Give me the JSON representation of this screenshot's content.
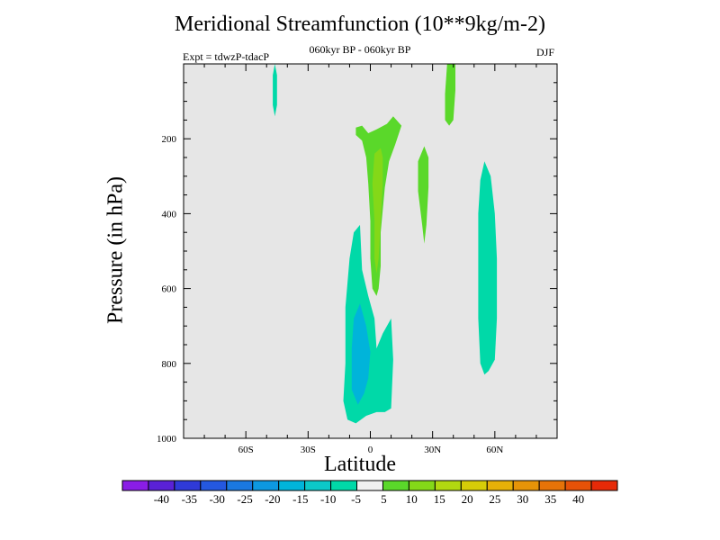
{
  "chart_data": {
    "type": "heatmap",
    "title": "Meridional Streamfunction (10**9kg/m-2)",
    "subtitle": "060kyr BP - 060kyr BP",
    "left_label": "Expt = tdwzP-tdacP",
    "right_label": "DJF",
    "xlabel": "Latitude",
    "ylabel": "Pressure (in hPa)",
    "xlim": [
      -90,
      90
    ],
    "ylim": [
      1000,
      0
    ],
    "x_ticks": [
      {
        "value": -60,
        "label": "60S"
      },
      {
        "value": -30,
        "label": "30S"
      },
      {
        "value": 0,
        "label": "0"
      },
      {
        "value": 30,
        "label": "30N"
      },
      {
        "value": 60,
        "label": "60N"
      }
    ],
    "y_ticks": [
      {
        "value": 200,
        "label": "200"
      },
      {
        "value": 400,
        "label": "400"
      },
      {
        "value": 600,
        "label": "600"
      },
      {
        "value": 800,
        "label": "800"
      },
      {
        "value": 1000,
        "label": "1000"
      }
    ],
    "background_color": "#e6e6e6",
    "colorbar": {
      "colors": [
        "#8a1de6",
        "#5a21d6",
        "#2f3ad8",
        "#2458e0",
        "#1a78e0",
        "#0d98e0",
        "#00b4da",
        "#0cc8c8",
        "#00d9a8",
        "#f0f0f0",
        "#5ad82a",
        "#84d818",
        "#b2d810",
        "#d6cc08",
        "#e6b008",
        "#e69408",
        "#e67308",
        "#e65208",
        "#e62a08"
      ],
      "labels": [
        "-40",
        "-35",
        "-30",
        "-25",
        "-20",
        "-15",
        "-10",
        "-5",
        "5",
        "10",
        "15",
        "20",
        "25",
        "30",
        "35",
        "40"
      ]
    },
    "contours": [
      {
        "name": "sh-upper-positive-plume",
        "level_color": "#00d9a8",
        "points": [
          [
            -46,
            0
          ],
          [
            -45,
            30
          ],
          [
            -45,
            110
          ],
          [
            -46,
            140
          ],
          [
            -47,
            110
          ],
          [
            -47,
            30
          ]
        ]
      },
      {
        "name": "equatorial-lower-negative-cell",
        "level_color": "#00d9a8",
        "points": [
          [
            -10,
            520
          ],
          [
            -8,
            450
          ],
          [
            -5,
            430
          ],
          [
            -4,
            550
          ],
          [
            -1,
            620
          ],
          [
            2,
            680
          ],
          [
            3,
            760
          ],
          [
            6,
            720
          ],
          [
            10,
            680
          ],
          [
            11,
            790
          ],
          [
            10,
            920
          ],
          [
            7,
            930
          ],
          [
            3,
            930
          ],
          [
            -2,
            940
          ],
          [
            -7,
            960
          ],
          [
            -11,
            950
          ],
          [
            -13,
            900
          ],
          [
            -12,
            800
          ],
          [
            -12,
            650
          ]
        ]
      },
      {
        "name": "equatorial-core-negative",
        "level_color": "#00b4da",
        "points": [
          [
            -8,
            680
          ],
          [
            -5,
            640
          ],
          [
            -2,
            700
          ],
          [
            0,
            770
          ],
          [
            -1,
            840
          ],
          [
            -3,
            880
          ],
          [
            -6,
            910
          ],
          [
            -9,
            870
          ],
          [
            -9,
            760
          ]
        ]
      },
      {
        "name": "equatorial-upper-positive",
        "level_color": "#5ad82a",
        "points": [
          [
            -7,
            170
          ],
          [
            -4,
            165
          ],
          [
            -1,
            185
          ],
          [
            3,
            175
          ],
          [
            8,
            160
          ],
          [
            11,
            140
          ],
          [
            15,
            165
          ],
          [
            12,
            215
          ],
          [
            9,
            260
          ],
          [
            7,
            330
          ],
          [
            5,
            450
          ],
          [
            5,
            540
          ],
          [
            4,
            600
          ],
          [
            3,
            620
          ],
          [
            1,
            600
          ],
          [
            0,
            520
          ],
          [
            0,
            420
          ],
          [
            -1,
            320
          ],
          [
            -2,
            250
          ],
          [
            -4,
            205
          ],
          [
            -7,
            190
          ]
        ]
      },
      {
        "name": "equatorial-upper-core",
        "level_color": "#84d818",
        "points": [
          [
            2,
            240
          ],
          [
            5,
            225
          ],
          [
            6,
            250
          ],
          [
            6,
            320
          ],
          [
            5,
            420
          ],
          [
            4,
            520
          ],
          [
            3,
            560
          ],
          [
            2,
            520
          ],
          [
            2,
            420
          ],
          [
            1,
            320
          ]
        ]
      },
      {
        "name": "nh-subtropical-positive",
        "level_color": "#5ad82a",
        "points": [
          [
            26,
            220
          ],
          [
            28,
            250
          ],
          [
            28,
            330
          ],
          [
            27,
            430
          ],
          [
            26,
            480
          ],
          [
            25,
            430
          ],
          [
            23,
            340
          ],
          [
            23,
            260
          ]
        ]
      },
      {
        "name": "nh-upper-positive",
        "level_color": "#5ad82a",
        "points": [
          [
            37,
            0
          ],
          [
            41,
            0
          ],
          [
            41,
            70
          ],
          [
            40,
            150
          ],
          [
            38,
            165
          ],
          [
            36,
            150
          ],
          [
            36,
            80
          ]
        ]
      },
      {
        "name": "nh-midlatitude-negative",
        "level_color": "#00d9a8",
        "points": [
          [
            55,
            260
          ],
          [
            58,
            300
          ],
          [
            60,
            400
          ],
          [
            61,
            520
          ],
          [
            61,
            680
          ],
          [
            60,
            790
          ],
          [
            57,
            820
          ],
          [
            55,
            830
          ],
          [
            53,
            800
          ],
          [
            52,
            680
          ],
          [
            52,
            520
          ],
          [
            52,
            400
          ],
          [
            53,
            310
          ]
        ]
      }
    ]
  }
}
